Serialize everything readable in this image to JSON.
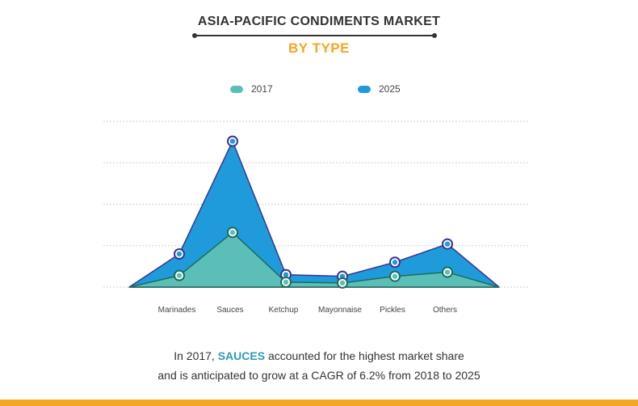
{
  "header": {
    "title": "ASIA-PACIFIC CONDIMENTS MARKET",
    "subtitle": "BY TYPE"
  },
  "caption": {
    "line1_prefix": "In 2017, ",
    "line1_highlight": "SAUCES",
    "line1_suffix": " accounted for the highest market share",
    "line2": "and is anticipated to grow at a CAGR of 6.2% from 2018 to 2025"
  },
  "colors": {
    "series_2017": "#5bbfb8",
    "series_2025": "#1f9bdc",
    "marker_2017": "#1f6b5a",
    "marker_2025": "#3a3590",
    "accent": "#f5a623"
  },
  "chart_data": {
    "type": "area",
    "categories": [
      "Marinades",
      "Sauces",
      "Ketchup",
      "Mayonnaise",
      "Pickles",
      "Others"
    ],
    "series": [
      {
        "name": "2017",
        "values": [
          0.28,
          1.32,
          0.12,
          0.1,
          0.26,
          0.36
        ]
      },
      {
        "name": "2025",
        "values": [
          0.8,
          3.52,
          0.3,
          0.26,
          0.6,
          1.04
        ]
      }
    ],
    "ylim": [
      0,
      4
    ],
    "y_gridlines": [
      1,
      2,
      3,
      4
    ],
    "y_tick_labels_shown": false,
    "grid": "dashed horizontal",
    "legend_position": "top"
  }
}
